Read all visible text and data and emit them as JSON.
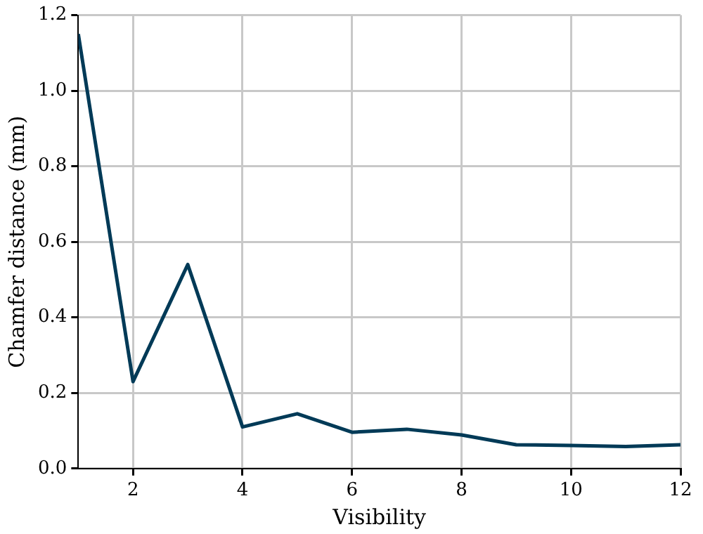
{
  "chart_data": {
    "type": "line",
    "xlabel": "Visibility",
    "ylabel": "Chamfer distance (mm)",
    "x": [
      1,
      2,
      3,
      4,
      5,
      6,
      7,
      8,
      9,
      10,
      11,
      12
    ],
    "series": [
      {
        "color": "#003a57",
        "values": [
          1.15,
          0.23,
          0.54,
          0.11,
          0.145,
          0.096,
          0.104,
          0.089,
          0.063,
          0.061,
          0.058,
          0.063
        ]
      }
    ],
    "xlim": [
      1,
      12
    ],
    "xticks": [
      2,
      4,
      6,
      8,
      10,
      12
    ],
    "ylim": [
      0,
      1.2
    ],
    "yticks": [
      {
        "value": 0,
        "label": "0.0"
      },
      {
        "value": 0.2,
        "label": "0.2"
      },
      {
        "value": 0.4,
        "label": "0.4"
      },
      {
        "value": 0.6,
        "label": "0.6"
      },
      {
        "value": 0.8,
        "label": "0.8"
      },
      {
        "value": 1.0,
        "label": "1.0"
      },
      {
        "value": 1.2,
        "label": "1.2"
      }
    ],
    "grid": true,
    "legend": false,
    "marker": "none",
    "line_style": "solid"
  }
}
